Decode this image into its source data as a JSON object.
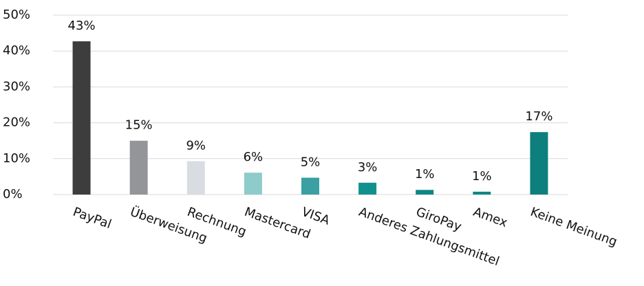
{
  "chart_data": {
    "type": "bar",
    "categories": [
      "PayPal",
      "Überweisung",
      "Rechnung",
      "Mastercard",
      "VISA",
      "Anderes Zahlungsmittel",
      "GiroPay",
      "Amex",
      "Keine Meinung"
    ],
    "values": [
      42.7,
      15,
      9.3,
      6.1,
      4.7,
      3.3,
      1.3,
      0.8,
      17.4
    ],
    "value_labels": [
      "43%",
      "15%",
      "9%",
      "6%",
      "5%",
      "3%",
      "1%",
      "1%",
      "17%"
    ],
    "colors": [
      "#3d3d3d",
      "#939598",
      "#d9dce1",
      "#8ecbcb",
      "#3aa0a3",
      "#10908f",
      "#0f8584",
      "#0f8584",
      "#0d7f7d"
    ],
    "ylim": [
      0,
      50
    ],
    "yticks": [
      {
        "value": 0,
        "label": "0%"
      },
      {
        "value": 10,
        "label": "10%"
      },
      {
        "value": 20,
        "label": "20%"
      },
      {
        "value": 30,
        "label": "30%"
      },
      {
        "value": 40,
        "label": "40%"
      },
      {
        "value": 50,
        "label": "50%"
      }
    ],
    "grid": true
  }
}
